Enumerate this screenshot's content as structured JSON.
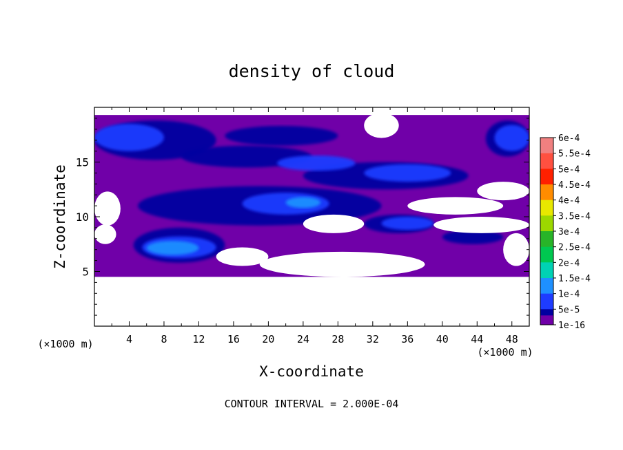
{
  "chart_data": {
    "type": "heatmap",
    "title": "density of cloud",
    "xlabel": "X-coordinate",
    "ylabel": "Z-coordinate",
    "x_unit": "(×1000 m)",
    "x_unit_right": "(×1000 m)",
    "xlim": [
      0,
      50
    ],
    "ylim": [
      0,
      20
    ],
    "x_ticks": [
      4,
      8,
      12,
      16,
      20,
      24,
      28,
      32,
      36,
      40,
      44,
      48
    ],
    "y_ticks": [
      5,
      10,
      15
    ],
    "footnote": "CONTOUR INTERVAL = 2.000E-04",
    "colorbar": {
      "labels": [
        "6e-4",
        "5.5e-4",
        "5e-4",
        "4.5e-4",
        "4e-4",
        "3.5e-4",
        "3e-4",
        "2.5e-4",
        "2e-4",
        "1.5e-4",
        "1e-4",
        "5e-5",
        "1e-16"
      ],
      "colors": [
        "#f08080",
        "#ff5040",
        "#ff2000",
        "#ff8c00",
        "#e8e800",
        "#9cd800",
        "#28b428",
        "#00c850",
        "#00d2b4",
        "#1e90ff",
        "#1e3cff",
        "#0000a0",
        "#7000a8"
      ]
    },
    "layer": {
      "z_bottom": 4.5,
      "z_top": 19.3
    },
    "regions": {
      "base": "1e-16",
      "cloud_bands": [
        {
          "level": "5e-5",
          "x": [
            0,
            14
          ],
          "z": [
            15.2,
            18.8
          ]
        },
        {
          "level": "5e-5",
          "x": [
            45,
            50
          ],
          "z": [
            15.5,
            18.8
          ]
        },
        {
          "level": "5e-5",
          "x": [
            15,
            28
          ],
          "z": [
            16.5,
            18.3
          ]
        },
        {
          "level": "5e-5",
          "x": [
            10,
            25
          ],
          "z": [
            14.5,
            16.5
          ]
        },
        {
          "level": "5e-5",
          "x": [
            24,
            43
          ],
          "z": [
            12.5,
            15.0
          ]
        },
        {
          "level": "5e-5",
          "x": [
            5,
            33
          ],
          "z": [
            9.2,
            12.8
          ]
        },
        {
          "level": "5e-5",
          "x": [
            31,
            39
          ],
          "z": [
            8.5,
            10.2
          ]
        },
        {
          "level": "5e-5",
          "x": [
            4.5,
            15
          ],
          "z": [
            5.8,
            9.0
          ]
        },
        {
          "level": "5e-5",
          "x": [
            40,
            47
          ],
          "z": [
            7.5,
            8.8
          ]
        },
        {
          "level": "1e-4",
          "x": [
            0,
            8
          ],
          "z": [
            16.0,
            18.5
          ]
        },
        {
          "level": "1e-4",
          "x": [
            46,
            50
          ],
          "z": [
            16.0,
            18.4
          ]
        },
        {
          "level": "1e-4",
          "x": [
            21,
            30
          ],
          "z": [
            14.2,
            15.6
          ]
        },
        {
          "level": "1e-4",
          "x": [
            31,
            41
          ],
          "z": [
            13.2,
            14.8
          ]
        },
        {
          "level": "1e-4",
          "x": [
            17,
            27
          ],
          "z": [
            10.2,
            12.2
          ]
        },
        {
          "level": "1e-4",
          "x": [
            33,
            39
          ],
          "z": [
            8.8,
            10.0
          ]
        },
        {
          "level": "1e-4",
          "x": [
            5.5,
            14
          ],
          "z": [
            6.2,
            8.2
          ]
        },
        {
          "level": "1.5e-4",
          "x": [
            6,
            12
          ],
          "z": [
            6.5,
            7.8
          ]
        },
        {
          "level": "1.5e-4",
          "x": [
            22,
            26
          ],
          "z": [
            10.8,
            11.8
          ]
        }
      ],
      "cloud_free_patches": [
        {
          "x": [
            0,
            50
          ],
          "z": [
            0,
            4.5
          ]
        },
        {
          "x": [
            31,
            35
          ],
          "z": [
            17.2,
            19.5
          ]
        },
        {
          "x": [
            0,
            3
          ],
          "z": [
            9.2,
            12.3
          ]
        },
        {
          "x": [
            14,
            20
          ],
          "z": [
            5.5,
            7.2
          ]
        },
        {
          "x": [
            19,
            38
          ],
          "z": [
            4.5,
            6.8
          ]
        },
        {
          "x": [
            24,
            31
          ],
          "z": [
            8.5,
            10.2
          ]
        },
        {
          "x": [
            36,
            47
          ],
          "z": [
            10.2,
            11.8
          ]
        },
        {
          "x": [
            44,
            50
          ],
          "z": [
            11.5,
            13.2
          ]
        },
        {
          "x": [
            39,
            50
          ],
          "z": [
            8.5,
            10.0
          ]
        },
        {
          "x": [
            47,
            50
          ],
          "z": [
            5.5,
            8.5
          ]
        },
        {
          "x": [
            0,
            2.5
          ],
          "z": [
            7.5,
            9.3
          ]
        }
      ]
    }
  }
}
